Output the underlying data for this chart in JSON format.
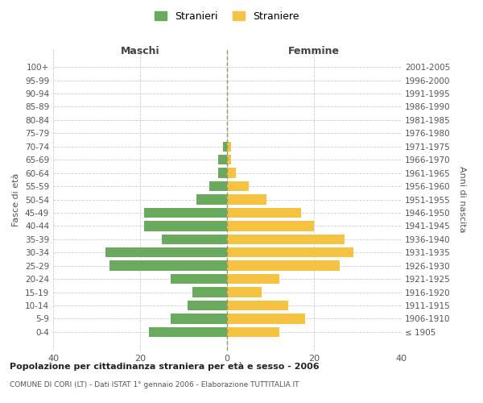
{
  "age_groups": [
    "100+",
    "95-99",
    "90-94",
    "85-89",
    "80-84",
    "75-79",
    "70-74",
    "65-69",
    "60-64",
    "55-59",
    "50-54",
    "45-49",
    "40-44",
    "35-39",
    "30-34",
    "25-29",
    "20-24",
    "15-19",
    "10-14",
    "5-9",
    "0-4"
  ],
  "birth_years": [
    "≤ 1905",
    "1906-1910",
    "1911-1915",
    "1916-1920",
    "1921-1925",
    "1926-1930",
    "1931-1935",
    "1936-1940",
    "1941-1945",
    "1946-1950",
    "1951-1955",
    "1956-1960",
    "1961-1965",
    "1966-1970",
    "1971-1975",
    "1976-1980",
    "1981-1985",
    "1986-1990",
    "1991-1995",
    "1996-2000",
    "2001-2005"
  ],
  "maschi": [
    0,
    0,
    0,
    0,
    0,
    0,
    1,
    2,
    2,
    4,
    7,
    19,
    19,
    15,
    28,
    27,
    13,
    8,
    9,
    13,
    18
  ],
  "femmine": [
    0,
    0,
    0,
    0,
    0,
    0,
    1,
    1,
    2,
    5,
    9,
    17,
    20,
    27,
    29,
    26,
    12,
    8,
    14,
    18,
    12
  ],
  "color_maschi": "#6aaa5e",
  "color_femmine": "#f5c242",
  "title_main": "Popolazione per cittadinanza straniera per età e sesso - 2006",
  "title_sub": "COMUNE DI CORI (LT) - Dati ISTAT 1° gennaio 2006 - Elaborazione TUTTITALIA.IT",
  "label_maschi": "Maschi",
  "label_femmine": "Femmine",
  "legend_stranieri": "Stranieri",
  "legend_straniere": "Straniere",
  "ylabel_left": "Fasce di età",
  "ylabel_right": "Anni di nascita",
  "xlim": 40,
  "grid_color": "#cccccc",
  "background_color": "#ffffff"
}
